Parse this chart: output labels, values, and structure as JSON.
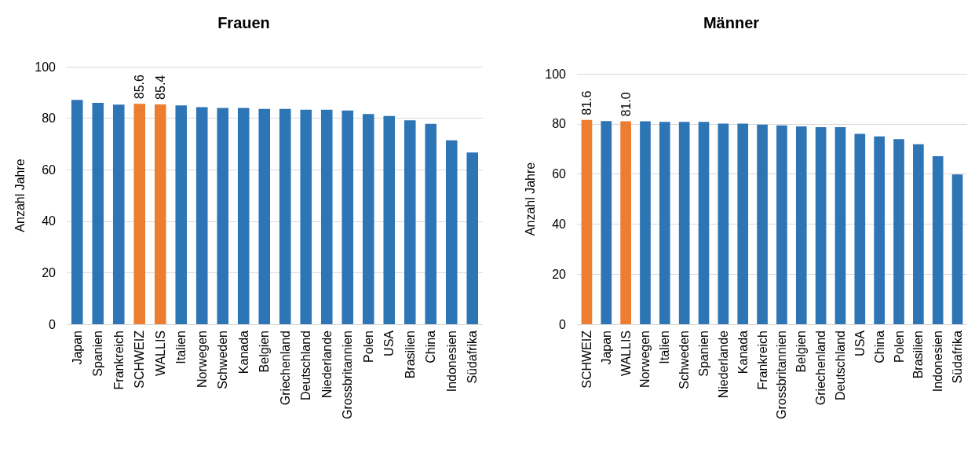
{
  "chart_data": [
    {
      "type": "bar",
      "title": "Frauen",
      "ylabel": "Anzahl Jahre",
      "categories": [
        "Japan",
        "Spanien",
        "Frankreich",
        "SCHWEIZ",
        "WALLIS",
        "Italien",
        "Norwegen",
        "Schweden",
        "Kanada",
        "Belgien",
        "Griechenland",
        "Deutschland",
        "Niederlande",
        "Grossbritannien",
        "Polen",
        "USA",
        "Brasilien",
        "China",
        "Indonesien",
        "Südafrika"
      ],
      "values": [
        87.1,
        86.0,
        85.3,
        85.6,
        85.4,
        85.0,
        84.3,
        84.0,
        84.0,
        83.6,
        83.6,
        83.3,
        83.3,
        83.0,
        81.6,
        80.9,
        79.2,
        77.8,
        71.4,
        66.7
      ],
      "colors": [
        "#2e75b6",
        "#2e75b6",
        "#2e75b6",
        "#ed7d31",
        "#ed7d31",
        "#2e75b6",
        "#2e75b6",
        "#2e75b6",
        "#2e75b6",
        "#2e75b6",
        "#2e75b6",
        "#2e75b6",
        "#2e75b6",
        "#2e75b6",
        "#2e75b6",
        "#2e75b6",
        "#2e75b6",
        "#2e75b6",
        "#2e75b6",
        "#2e75b6"
      ],
      "value_labels": [
        null,
        null,
        null,
        "85.6",
        "85.4",
        null,
        null,
        null,
        null,
        null,
        null,
        null,
        null,
        null,
        null,
        null,
        null,
        null,
        null,
        null
      ],
      "ylim": [
        0,
        100
      ],
      "yticks": [
        0,
        20,
        40,
        60,
        80,
        100
      ],
      "grid": "y"
    },
    {
      "type": "bar",
      "title": "Männer",
      "ylabel": "Anzahl Jahre",
      "categories": [
        "SCHWEIZ",
        "Japan",
        "WALLIS",
        "Norwegen",
        "Italien",
        "Schweden",
        "Spanien",
        "Niederlande",
        "Kanada",
        "Frankreich",
        "Grossbritannien",
        "Belgien",
        "Griechenland",
        "Deutschland",
        "USA",
        "China",
        "Polen",
        "Brasilien",
        "Indonesien",
        "Südafrika"
      ],
      "values": [
        81.6,
        81.1,
        81.0,
        81.0,
        80.8,
        80.8,
        80.8,
        80.1,
        80.1,
        79.7,
        79.4,
        79.0,
        78.7,
        78.7,
        76.0,
        75.0,
        73.9,
        71.9,
        67.1,
        59.8
      ],
      "colors": [
        "#ed7d31",
        "#2e75b6",
        "#ed7d31",
        "#2e75b6",
        "#2e75b6",
        "#2e75b6",
        "#2e75b6",
        "#2e75b6",
        "#2e75b6",
        "#2e75b6",
        "#2e75b6",
        "#2e75b6",
        "#2e75b6",
        "#2e75b6",
        "#2e75b6",
        "#2e75b6",
        "#2e75b6",
        "#2e75b6",
        "#2e75b6",
        "#2e75b6"
      ],
      "value_labels": [
        "81.6",
        null,
        "81.0",
        null,
        null,
        null,
        null,
        null,
        null,
        null,
        null,
        null,
        null,
        null,
        null,
        null,
        null,
        null,
        null,
        null
      ],
      "ylim": [
        0,
        100
      ],
      "yticks": [
        0,
        20,
        40,
        60,
        80,
        100
      ],
      "grid": "y"
    }
  ]
}
